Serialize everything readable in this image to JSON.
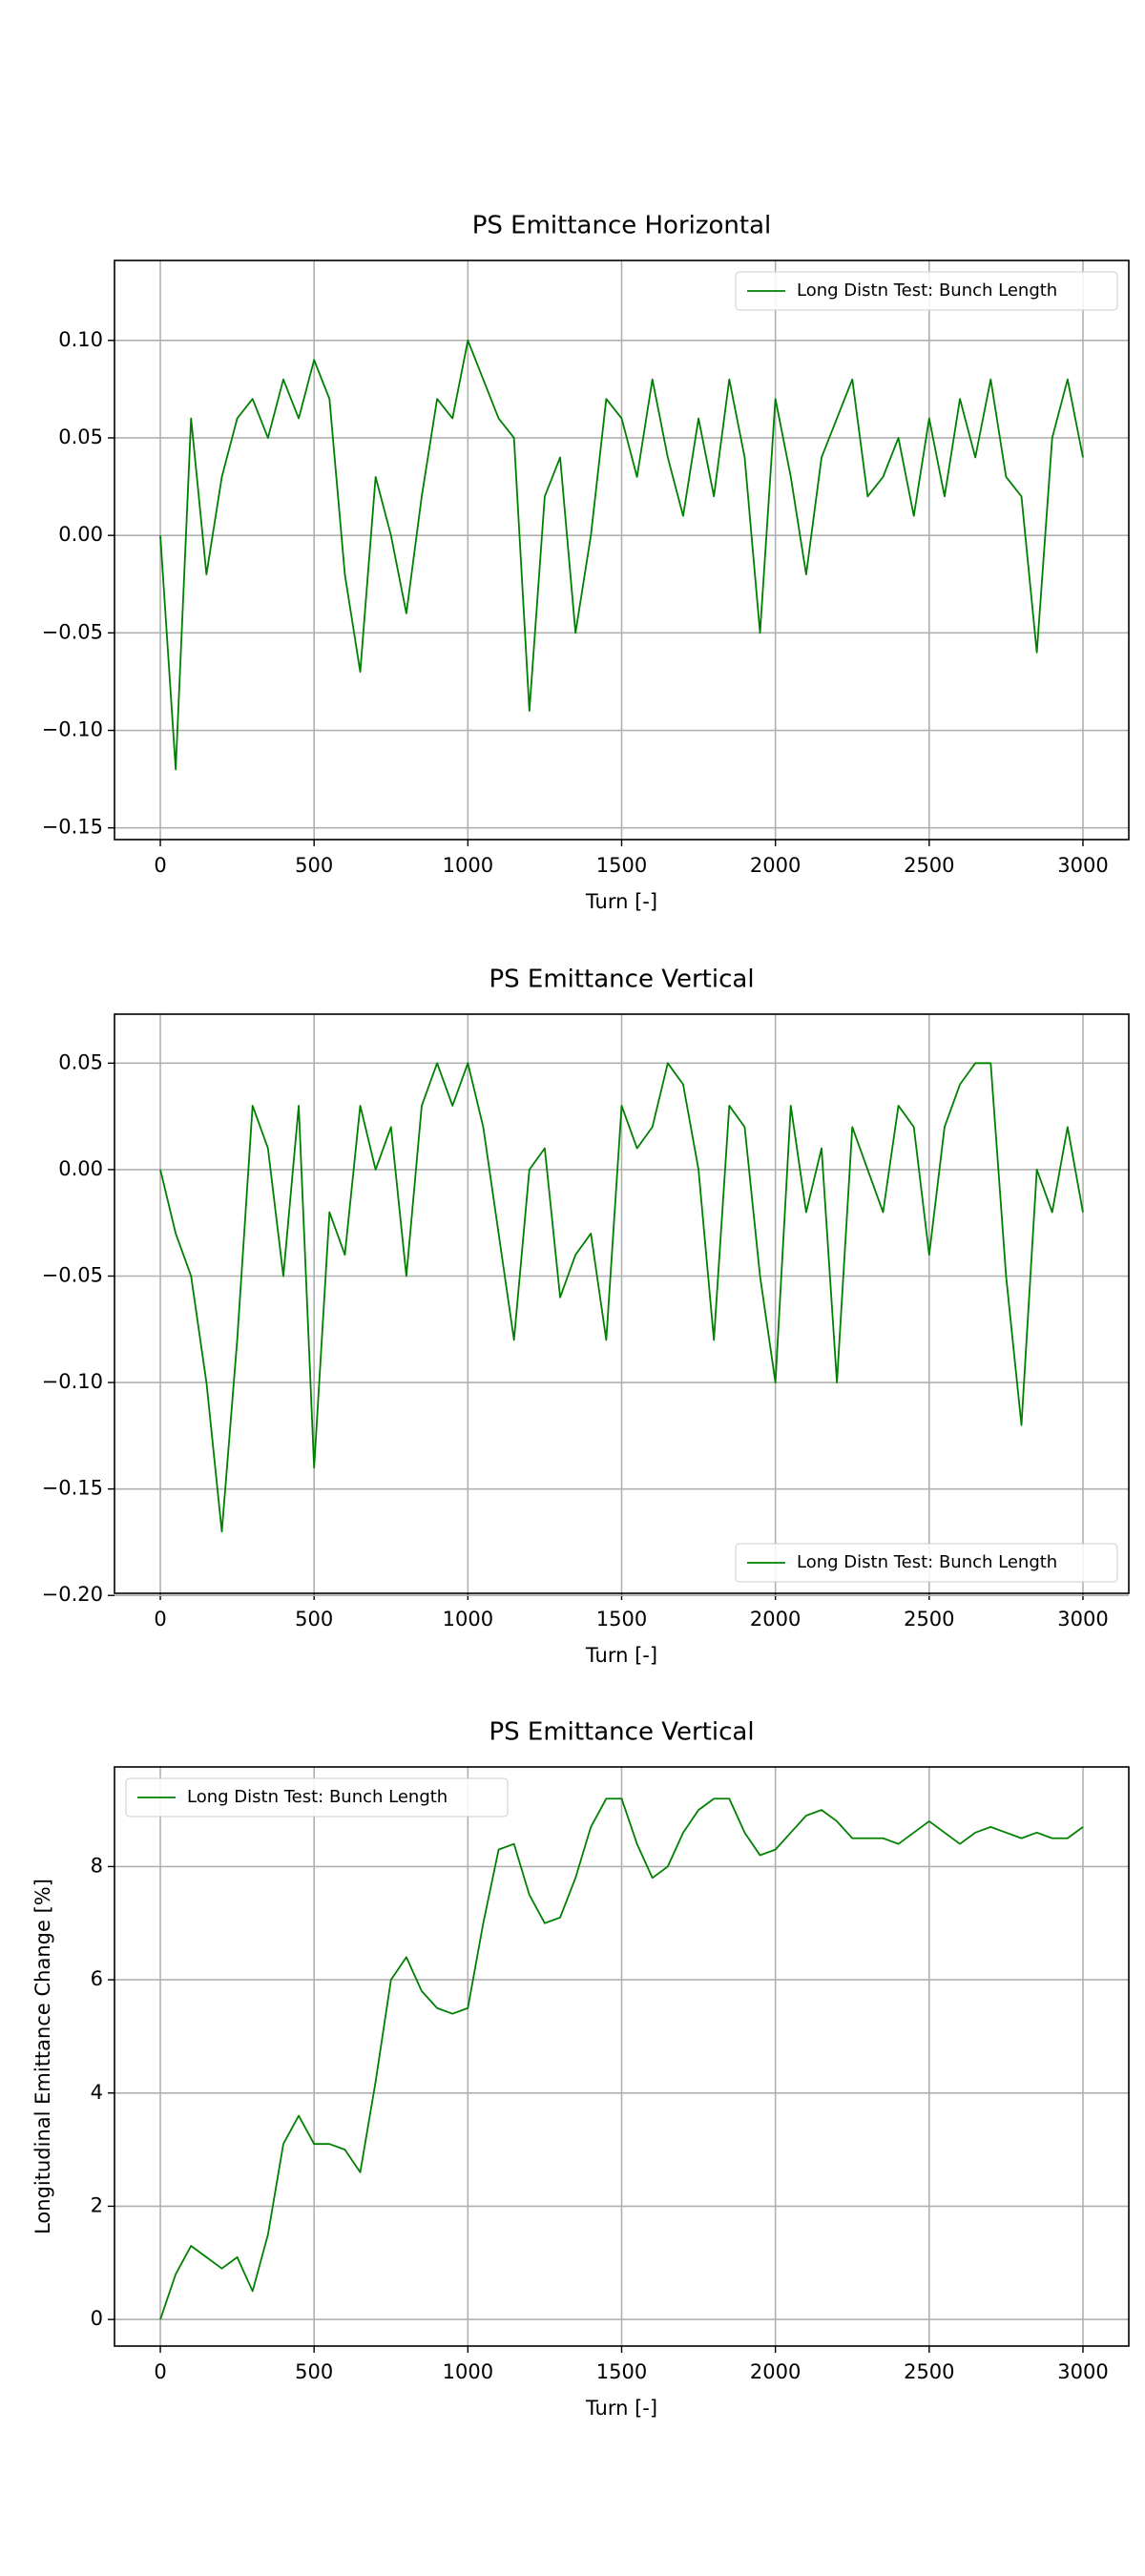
{
  "chart_data": [
    {
      "type": "line",
      "title": "PS Emittance Horizontal",
      "x_label": "Turn [-]",
      "x": [
        0,
        50,
        100,
        150,
        200,
        250,
        300,
        350,
        400,
        450,
        500,
        550,
        600,
        650,
        700,
        750,
        800,
        850,
        900,
        950,
        1000,
        1050,
        1100,
        1150,
        1200,
        1250,
        1300,
        1350,
        1400,
        1450,
        1500,
        1550,
        1600,
        1650,
        1700,
        1750,
        1800,
        1850,
        1900,
        1950,
        2000,
        2050,
        2100,
        2150,
        2200,
        2250,
        2300,
        2350,
        2400,
        2450,
        2500,
        2550,
        2600,
        2650,
        2700,
        2750,
        2800,
        2850,
        2900,
        2950,
        3000
      ],
      "series": [
        {
          "name": "Long Distn Test: Bunch Length",
          "color": "#008000",
          "values": [
            0.0,
            -0.12,
            0.06,
            -0.02,
            0.03,
            0.06,
            0.07,
            0.05,
            0.08,
            0.06,
            0.09,
            0.07,
            -0.02,
            -0.07,
            0.03,
            0.0,
            -0.04,
            0.02,
            0.07,
            0.06,
            0.1,
            0.08,
            0.06,
            0.05,
            -0.09,
            0.02,
            0.04,
            -0.05,
            0.0,
            0.07,
            0.06,
            0.03,
            0.08,
            0.04,
            0.01,
            0.06,
            0.02,
            0.08,
            0.04,
            -0.05,
            0.07,
            0.03,
            -0.02,
            0.04,
            0.06,
            0.08,
            0.02,
            0.03,
            0.05,
            0.01,
            0.06,
            0.02,
            0.07,
            0.04,
            0.08,
            0.03,
            0.02,
            -0.06,
            0.05,
            0.08,
            0.04
          ]
        }
      ],
      "xlim": [
        -149,
        3149
      ],
      "xticks": [
        0,
        500,
        1000,
        1500,
        2000,
        2500,
        3000
      ],
      "ylim": [
        -0.156,
        0.141
      ],
      "yticks": [
        {
          "value": -0.15,
          "label": "−0.15"
        },
        {
          "value": -0.1,
          "label": "−0.10"
        },
        {
          "value": -0.05,
          "label": "−0.05"
        },
        {
          "value": 0,
          "label": "0.00"
        },
        {
          "value": 0.05,
          "label": "0.05"
        },
        {
          "value": 0.1,
          "label": "0.10"
        }
      ],
      "grid": true,
      "legend": "upper right"
    },
    {
      "type": "line",
      "title": "PS Emittance Vertical",
      "x_label": "Turn [-]",
      "x": [
        0,
        50,
        100,
        150,
        200,
        250,
        300,
        350,
        400,
        450,
        500,
        550,
        600,
        650,
        700,
        750,
        800,
        850,
        900,
        950,
        1000,
        1050,
        1100,
        1150,
        1200,
        1250,
        1300,
        1350,
        1400,
        1450,
        1500,
        1550,
        1600,
        1650,
        1700,
        1750,
        1800,
        1850,
        1900,
        1950,
        2000,
        2050,
        2100,
        2150,
        2200,
        2250,
        2300,
        2350,
        2400,
        2450,
        2500,
        2550,
        2600,
        2650,
        2700,
        2750,
        2800,
        2850,
        2900,
        2950,
        3000
      ],
      "series": [
        {
          "name": "Long Distn Test: Bunch Length",
          "color": "#008000",
          "values": [
            0.0,
            -0.03,
            -0.05,
            -0.1,
            -0.17,
            -0.08,
            0.03,
            0.01,
            -0.05,
            0.03,
            -0.14,
            -0.02,
            -0.04,
            0.03,
            0.0,
            0.02,
            -0.05,
            0.03,
            0.05,
            0.03,
            0.05,
            0.02,
            -0.03,
            -0.08,
            0.0,
            0.01,
            -0.06,
            -0.04,
            -0.03,
            -0.08,
            0.03,
            0.01,
            0.02,
            0.05,
            0.04,
            0.0,
            -0.08,
            0.03,
            0.02,
            -0.05,
            -0.1,
            0.03,
            -0.02,
            0.01,
            -0.1,
            0.02,
            0.0,
            -0.02,
            0.03,
            0.02,
            -0.04,
            0.02,
            0.04,
            0.05,
            0.05,
            -0.05,
            -0.12,
            0.0,
            -0.02,
            0.02,
            -0.02
          ]
        }
      ],
      "xlim": [
        -149,
        3149
      ],
      "xticks": [
        0,
        500,
        1000,
        1500,
        2000,
        2500,
        3000
      ],
      "ylim": [
        -0.199,
        0.073
      ],
      "yticks": [
        {
          "value": -0.2,
          "label": "−0.20"
        },
        {
          "value": -0.15,
          "label": "−0.15"
        },
        {
          "value": -0.1,
          "label": "−0.10"
        },
        {
          "value": -0.05,
          "label": "−0.05"
        },
        {
          "value": 0,
          "label": "0.00"
        },
        {
          "value": 0.05,
          "label": "0.05"
        }
      ],
      "grid": true,
      "legend": "lower right"
    },
    {
      "type": "line",
      "title": "PS Emittance Vertical",
      "x_label": "Turn [-]",
      "y_label": "Longitudinal Emittance Change [%]",
      "x": [
        0,
        50,
        100,
        150,
        200,
        250,
        300,
        350,
        400,
        450,
        500,
        550,
        600,
        650,
        700,
        750,
        800,
        850,
        900,
        950,
        1000,
        1050,
        1100,
        1150,
        1200,
        1250,
        1300,
        1350,
        1400,
        1450,
        1500,
        1550,
        1600,
        1650,
        1700,
        1750,
        1800,
        1850,
        1900,
        1950,
        2000,
        2050,
        2100,
        2150,
        2200,
        2250,
        2300,
        2350,
        2400,
        2450,
        2500,
        2550,
        2600,
        2650,
        2700,
        2750,
        2800,
        2850,
        2900,
        2950,
        3000
      ],
      "series": [
        {
          "name": "Long Distn Test: Bunch Length",
          "color": "#008000",
          "values": [
            0.0,
            0.8,
            1.3,
            1.1,
            0.9,
            1.1,
            0.5,
            1.5,
            3.1,
            3.6,
            3.1,
            3.1,
            3.0,
            2.6,
            4.2,
            6.0,
            6.4,
            5.8,
            5.5,
            5.4,
            5.5,
            7.0,
            8.3,
            8.4,
            7.5,
            7.0,
            7.1,
            7.8,
            8.7,
            9.2,
            9.2,
            8.4,
            7.8,
            8.0,
            8.6,
            9.0,
            9.2,
            9.2,
            8.6,
            8.2,
            8.3,
            8.6,
            8.9,
            9.0,
            8.8,
            8.5,
            8.5,
            8.5,
            8.4,
            8.6,
            8.8,
            8.6,
            8.4,
            8.6,
            8.7,
            8.6,
            8.5,
            8.6,
            8.5,
            8.5,
            8.7
          ]
        }
      ],
      "xlim": [
        -149,
        3149
      ],
      "xticks": [
        0,
        500,
        1000,
        1500,
        2000,
        2500,
        3000
      ],
      "ylim": [
        -0.47,
        9.76
      ],
      "yticks": [
        0,
        2,
        4,
        6,
        8
      ],
      "grid": true,
      "legend": "upper left"
    }
  ]
}
